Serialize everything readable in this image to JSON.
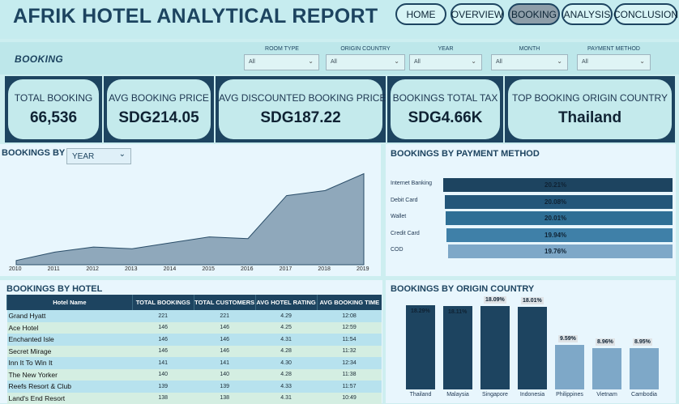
{
  "header": {
    "title": "AFRIK HOTEL ANALYTICAL REPORT",
    "nav": [
      {
        "label": "HOME",
        "active": false
      },
      {
        "label": "OVERVIEW",
        "active": false
      },
      {
        "label": "BOOKING",
        "active": true
      },
      {
        "label": "ANALYSIS",
        "active": false
      },
      {
        "label": "CONCLUSION",
        "active": false
      }
    ]
  },
  "page_label": "BOOKING",
  "filters": [
    {
      "label": "ROOM TYPE",
      "value": "All"
    },
    {
      "label": "ORIGIN COUNTRY",
      "value": "All"
    },
    {
      "label": "YEAR",
      "value": "All"
    },
    {
      "label": "MONTH",
      "value": "All"
    },
    {
      "label": "PAYMENT METHOD",
      "value": "All"
    }
  ],
  "kpis": [
    {
      "label": "TOTAL BOOKING",
      "value": "66,536"
    },
    {
      "label": "AVG BOOKING PRICE",
      "value": "SDG214.05"
    },
    {
      "label": "AVG DISCOUNTED BOOKING PRICE",
      "value": "SDG187.22"
    },
    {
      "label": "BOOKINGS TOTAL TAX",
      "value": "SDG4.66K"
    },
    {
      "label": "TOP BOOKING ORIGIN COUNTRY",
      "value": "Thailand"
    }
  ],
  "bookings_by": {
    "title": "BOOKINGS BY",
    "selector_value": "YEAR"
  },
  "payment": {
    "title": "BOOKINGS BY PAYMENT METHOD"
  },
  "hotel": {
    "title": "BOOKINGS BY HOTEL",
    "columns": [
      "Hotel Name",
      "TOTAL BOOKINGS",
      "TOTAL CUSTOMERS",
      "AVG HOTEL RATING",
      "AVG BOOKING TIME"
    ],
    "rows": [
      [
        "Grand Hyatt",
        "221",
        "221",
        "4.29",
        "12:08"
      ],
      [
        "Ace Hotel",
        "146",
        "146",
        "4.25",
        "12:59"
      ],
      [
        "Enchanted Isle",
        "146",
        "146",
        "4.31",
        "11:54"
      ],
      [
        "Secret Mirage",
        "146",
        "146",
        "4.28",
        "11:32"
      ],
      [
        "Inn It To Win It",
        "141",
        "141",
        "4.30",
        "12:34"
      ],
      [
        "The New Yorker",
        "140",
        "140",
        "4.28",
        "11:38"
      ],
      [
        "Reefs Resort & Club",
        "139",
        "139",
        "4.33",
        "11:57"
      ],
      [
        "Land's End Resort",
        "138",
        "138",
        "4.31",
        "10:49"
      ]
    ]
  },
  "origin": {
    "title": "BOOKINGS BY ORIGIN COUNTRY"
  },
  "colors": {
    "navy": "#1d4460",
    "mid_blue": "#2e6f95",
    "light_blue": "#7ea8c8",
    "area": "#8fa8bb"
  },
  "chart_data": [
    {
      "type": "area",
      "x": [
        "2010",
        "2011",
        "2012",
        "2013",
        "2014",
        "2015",
        "2016",
        "2017",
        "2018",
        "2019"
      ],
      "values": [
        2.5,
        7.5,
        10.5,
        9.5,
        13,
        16.5,
        15.5,
        41,
        44,
        54
      ],
      "ylim": [
        0,
        60
      ],
      "grid": false
    },
    {
      "type": "bar",
      "orientation": "horizontal",
      "categories": [
        "Internet Banking",
        "Debit Card",
        "Wallet",
        "Credit Card",
        "COD"
      ],
      "values": [
        20.21,
        20.08,
        20.01,
        19.94,
        19.76
      ],
      "labels": [
        "20.21%",
        "20.08%",
        "20.01%",
        "19.94%",
        "19.76%"
      ],
      "colors": [
        "#1d4460",
        "#23567a",
        "#2e6f95",
        "#3f80a8",
        "#7ea8c8"
      ]
    },
    {
      "type": "bar",
      "categories": [
        "Thailand",
        "Malaysia",
        "Singapore",
        "Indonesia",
        "Philippines",
        "Vietnam",
        "Cambodia"
      ],
      "values": [
        18.29,
        18.11,
        18.09,
        18.01,
        9.59,
        8.96,
        8.95
      ],
      "labels": [
        "18.29%",
        "18.11%",
        "18.09%",
        "18.01%",
        "9.59%",
        "8.96%",
        "8.95%"
      ],
      "colors": [
        "#1d4460",
        "#1d4460",
        "#1d4460",
        "#1d4460",
        "#7ea8c8",
        "#7ea8c8",
        "#7ea8c8"
      ]
    }
  ]
}
